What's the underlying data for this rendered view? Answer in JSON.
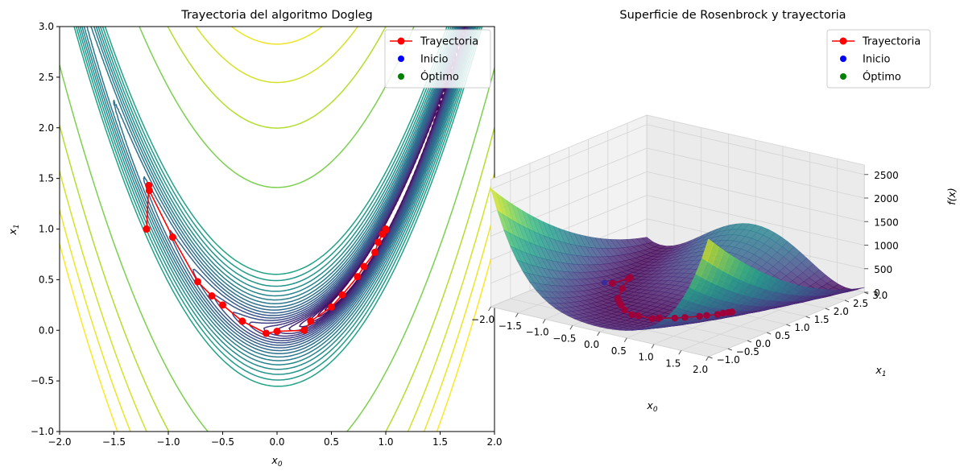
{
  "chart_data": [
    {
      "type": "contour",
      "title": "Trayectoria del algoritmo Dogleg",
      "xlabel": "x0",
      "ylabel": "x1",
      "xlim": [
        -2,
        2
      ],
      "ylim": [
        -1,
        3
      ],
      "xticks": [
        "−2.0",
        "−1.5",
        "−1.0",
        "−0.5",
        "0.0",
        "0.5",
        "1.0",
        "1.5",
        "2.0"
      ],
      "yticks": [
        "−1.0",
        "−0.5",
        "0.0",
        "0.5",
        "1.0",
        "1.5",
        "2.0",
        "2.5",
        "3.0"
      ],
      "colormap": "viridis",
      "grid": false,
      "legend_position": "top-right",
      "legend": [
        {
          "label": "Trayectoria",
          "type": "line-marker",
          "color": "#ff0000"
        },
        {
          "label": "Inicio",
          "type": "marker",
          "color": "#0000ff"
        },
        {
          "label": "Óptimo",
          "type": "marker",
          "color": "#008000"
        }
      ],
      "series": [
        {
          "name": "Trayectoria",
          "x": [
            -1.2,
            -1.18,
            -1.175,
            -0.96,
            -0.73,
            -0.6,
            -0.5,
            -0.32,
            -0.1,
            0.0,
            0.25,
            0.31,
            0.5,
            0.6,
            0.74,
            0.8,
            0.9,
            0.93,
            0.97,
            1.0,
            1.0
          ],
          "y": [
            1.0,
            1.43,
            1.38,
            0.92,
            0.48,
            0.34,
            0.25,
            0.09,
            -0.03,
            -0.01,
            0.0,
            0.09,
            0.23,
            0.35,
            0.53,
            0.63,
            0.77,
            0.87,
            0.95,
            0.99,
            1.0
          ]
        },
        {
          "name": "Inicio",
          "x": [
            -1.2
          ],
          "y": [
            1.0
          ]
        },
        {
          "name": "Óptimo",
          "x": [
            1.0
          ],
          "y": [
            1.0
          ]
        }
      ]
    },
    {
      "type": "surface3d",
      "title": "Superficie de Rosenbrock y trayectoria",
      "xlabel": "x0",
      "ylabel": "x1",
      "zlabel": "f(x)",
      "xlim": [
        -2,
        2
      ],
      "ylim": [
        -1,
        3
      ],
      "zlim": [
        0,
        2500
      ],
      "xticks": [
        "−2.0",
        "−1.5",
        "−1.0",
        "−0.5",
        "0.0",
        "0.5",
        "1.0",
        "1.5",
        "2.0"
      ],
      "yticks": [
        "−1.0",
        "−0.5",
        "0.0",
        "0.5",
        "1.0",
        "1.5",
        "2.0",
        "2.5",
        "3.0"
      ],
      "zticks": [
        "0",
        "500",
        "1000",
        "1500",
        "2000",
        "2500"
      ],
      "colormap": "viridis",
      "legend_position": "top-right",
      "legend": [
        {
          "label": "Trayectoria",
          "type": "line-marker",
          "color": "#ff0000"
        },
        {
          "label": "Inicio",
          "type": "marker",
          "color": "#0000ff"
        },
        {
          "label": "Óptimo",
          "type": "marker",
          "color": "#008000"
        }
      ]
    }
  ]
}
